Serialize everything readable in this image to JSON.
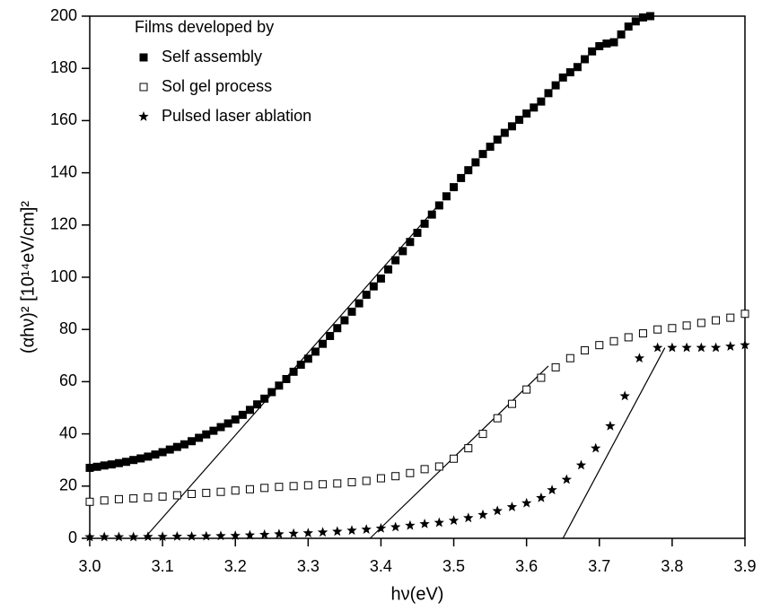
{
  "chart_data": {
    "type": "scatter",
    "xlabel": "hν(eV)",
    "ylabel": "(αhν)² [10¹⁴eV/cm]²",
    "legend_title": "Films developed by",
    "legend": "upper left",
    "xlim": [
      3.0,
      3.9
    ],
    "ylim": [
      0,
      200
    ],
    "xticks": [
      {
        "value": 3.0,
        "label": "3.0"
      },
      3.1,
      3.2,
      3.3,
      3.4,
      3.5,
      3.6,
      3.7,
      3.8,
      3.9
    ],
    "yticks": [
      0,
      20,
      40,
      60,
      80,
      100,
      120,
      140,
      160,
      180,
      200
    ],
    "series": [
      {
        "name": "Self assembly",
        "color": "#000000",
        "marker": "filled-square",
        "x": [
          3.0,
          3.01,
          3.02,
          3.03,
          3.04,
          3.05,
          3.06,
          3.07,
          3.08,
          3.09,
          3.1,
          3.11,
          3.12,
          3.13,
          3.14,
          3.15,
          3.16,
          3.17,
          3.18,
          3.19,
          3.2,
          3.21,
          3.22,
          3.23,
          3.24,
          3.25,
          3.26,
          3.27,
          3.28,
          3.29,
          3.3,
          3.31,
          3.32,
          3.33,
          3.34,
          3.35,
          3.36,
          3.37,
          3.38,
          3.39,
          3.4,
          3.41,
          3.42,
          3.43,
          3.44,
          3.45,
          3.46,
          3.47,
          3.48,
          3.49,
          3.5,
          3.51,
          3.52,
          3.53,
          3.54,
          3.55,
          3.56,
          3.57,
          3.58,
          3.59,
          3.6,
          3.61,
          3.62,
          3.63,
          3.64,
          3.65,
          3.66,
          3.67,
          3.68,
          3.69,
          3.7,
          3.71,
          3.72,
          3.73,
          3.74,
          3.75,
          3.76,
          3.77
        ],
        "values": [
          27.0,
          27.4,
          27.9,
          28.3,
          28.8,
          29.3,
          30.0,
          30.6,
          31.3,
          32.1,
          33.0,
          34.0,
          35.0,
          36.0,
          37.2,
          38.5,
          39.8,
          41.2,
          42.6,
          44.0,
          45.5,
          47.3,
          49.2,
          51.3,
          53.5,
          56.0,
          58.5,
          61.0,
          63.8,
          66.5,
          68.8,
          71.5,
          74.5,
          77.5,
          80.5,
          83.5,
          86.8,
          90.0,
          93.3,
          96.5,
          99.5,
          103.0,
          106.5,
          110.0,
          113.5,
          117.0,
          120.5,
          124.0,
          127.5,
          131.0,
          134.5,
          138.0,
          141.0,
          144.0,
          147.2,
          150.0,
          152.7,
          155.3,
          157.8,
          160.3,
          162.7,
          165.0,
          167.3,
          170.5,
          173.5,
          176.5,
          178.5,
          180.5,
          183.5,
          186.5,
          188.5,
          189.5,
          190.0,
          193.0,
          196.0,
          198.0,
          199.5,
          200.0
        ]
      },
      {
        "name": "Sol gel process",
        "color": "#000000",
        "marker": "open-square",
        "x": [
          3.0,
          3.02,
          3.04,
          3.06,
          3.08,
          3.1,
          3.12,
          3.14,
          3.16,
          3.18,
          3.2,
          3.22,
          3.24,
          3.26,
          3.28,
          3.3,
          3.32,
          3.34,
          3.36,
          3.38,
          3.4,
          3.42,
          3.44,
          3.46,
          3.48,
          3.5,
          3.52,
          3.54,
          3.56,
          3.58,
          3.6,
          3.62,
          3.64,
          3.66,
          3.68,
          3.7,
          3.72,
          3.74,
          3.76,
          3.78,
          3.8,
          3.82,
          3.84,
          3.86,
          3.88,
          3.9
        ],
        "values": [
          14.0,
          14.5,
          15.0,
          15.3,
          15.7,
          16.0,
          16.5,
          17.0,
          17.4,
          17.8,
          18.3,
          18.8,
          19.3,
          19.7,
          20.0,
          20.3,
          20.7,
          21.0,
          21.5,
          22.0,
          23.0,
          23.8,
          25.0,
          26.5,
          27.5,
          30.5,
          34.5,
          40.0,
          46.0,
          51.5,
          57.0,
          61.5,
          65.5,
          69.0,
          72.0,
          74.0,
          75.5,
          77.0,
          78.5,
          80.0,
          80.5,
          81.5,
          82.5,
          83.5,
          84.5,
          86.0
        ]
      },
      {
        "name": "Pulsed laser ablation",
        "color": "#000000",
        "marker": "star",
        "x": [
          3.0,
          3.02,
          3.04,
          3.06,
          3.08,
          3.1,
          3.12,
          3.14,
          3.16,
          3.18,
          3.2,
          3.22,
          3.24,
          3.26,
          3.28,
          3.3,
          3.32,
          3.34,
          3.36,
          3.38,
          3.4,
          3.42,
          3.44,
          3.46,
          3.48,
          3.5,
          3.52,
          3.54,
          3.56,
          3.58,
          3.6,
          3.62,
          3.635,
          3.655,
          3.675,
          3.695,
          3.715,
          3.735,
          3.755,
          3.78,
          3.8,
          3.82,
          3.84,
          3.86,
          3.88,
          3.9
        ],
        "values": [
          0.5,
          0.5,
          0.5,
          0.5,
          0.6,
          0.6,
          0.7,
          0.7,
          0.8,
          0.9,
          1.0,
          1.2,
          1.4,
          1.6,
          1.8,
          2.0,
          2.3,
          2.6,
          3.0,
          3.4,
          3.8,
          4.3,
          4.9,
          5.5,
          6.0,
          6.8,
          7.8,
          9.0,
          10.5,
          12.0,
          13.5,
          15.5,
          18.5,
          22.5,
          28.0,
          34.5,
          43.0,
          54.5,
          69.0,
          73.0,
          73.0,
          73.0,
          73.0,
          73.0,
          73.5,
          74.0
        ]
      }
    ],
    "fit_lines": [
      {
        "x": [
          3.075,
          3.48
        ],
        "y": [
          0,
          128
        ]
      },
      {
        "x": [
          3.385,
          3.63
        ],
        "y": [
          0,
          66
        ]
      },
      {
        "x": [
          3.65,
          3.79
        ],
        "y": [
          0,
          73
        ]
      }
    ]
  }
}
